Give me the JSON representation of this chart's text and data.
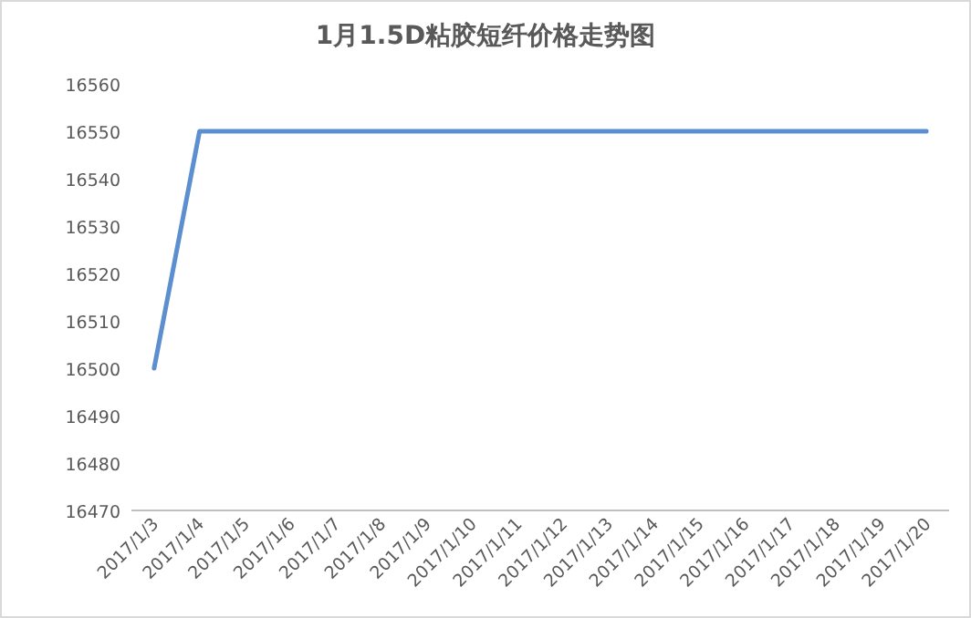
{
  "chart_data": {
    "type": "line",
    "title": "1月1.5D粘胶短纤价格走势图",
    "categories": [
      "2017/1/3",
      "2017/1/4",
      "2017/1/5",
      "2017/1/6",
      "2017/1/7",
      "2017/1/8",
      "2017/1/9",
      "2017/1/10",
      "2017/1/11",
      "2017/1/12",
      "2017/1/13",
      "2017/1/14",
      "2017/1/15",
      "2017/1/16",
      "2017/1/17",
      "2017/1/18",
      "2017/1/19",
      "2017/1/20"
    ],
    "series": [
      {
        "color": "#5b8fcf",
        "values": [
          16500,
          16550,
          16550,
          16550,
          16550,
          16550,
          16550,
          16550,
          16550,
          16550,
          16550,
          16550,
          16550,
          16550,
          16550,
          16550,
          16550,
          16550
        ]
      }
    ],
    "ylim": [
      16470,
      16560
    ],
    "yticks": [
      16470,
      16480,
      16490,
      16500,
      16510,
      16520,
      16530,
      16540,
      16550,
      16560
    ],
    "grid": false,
    "marker": "none",
    "line_style": "solid"
  }
}
